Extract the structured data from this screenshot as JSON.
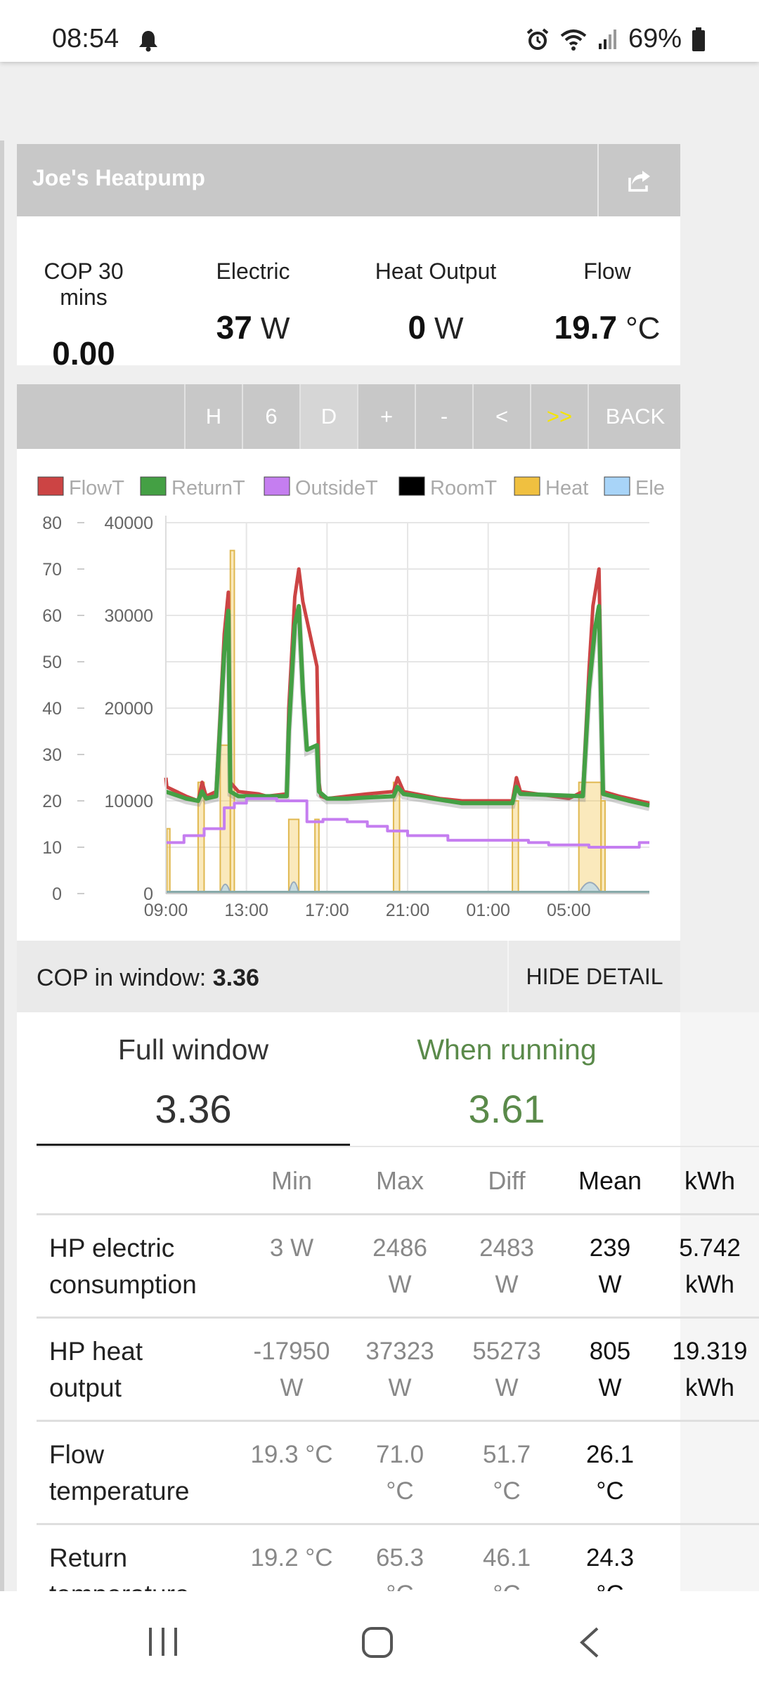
{
  "status_bar": {
    "time": "08:54",
    "battery": "69%"
  },
  "app": {
    "title": "Joe's Heatpump",
    "stats": [
      {
        "label": "COP 30 mins",
        "value": "0.00",
        "unit": ""
      },
      {
        "label": "Electric",
        "value": "37",
        "unit": "W"
      },
      {
        "label": "Heat Output",
        "value": "0",
        "unit": "W"
      },
      {
        "label": "Flow",
        "value": "19.7",
        "unit": "°C"
      }
    ],
    "toolbar": [
      "H",
      "6",
      "D",
      "+",
      "-",
      "<",
      ">>",
      "BACK"
    ],
    "colors": {
      "flow": "#cc4444",
      "return": "#44a044",
      "outside": "#c57ef0",
      "room": "#000000",
      "heat": "#f0c040",
      "elec": "#a8d4f8",
      "highlight": "#f5e500"
    }
  },
  "chart_data": {
    "type": "line",
    "legend": [
      "FlowT",
      "ReturnT",
      "OutsideT",
      "RoomT",
      "Heat",
      "Ele"
    ],
    "y_left_ticks": [
      "80",
      "70",
      "60",
      "50",
      "40",
      "30",
      "20",
      "10",
      "0"
    ],
    "y_right_ticks": [
      "40000",
      "30000",
      "20000",
      "10000",
      "0"
    ],
    "x_ticks": [
      "09:00",
      "13:00",
      "17:00",
      "21:00",
      "01:00",
      "05:00"
    ],
    "y_left_range": [
      0,
      80
    ],
    "y_right_range": [
      0,
      40000
    ],
    "x_range_hours": [
      0,
      24
    ],
    "series": [
      {
        "name": "FlowT",
        "color": "#cc4444",
        "points": [
          [
            0,
            25
          ],
          [
            0.05,
            23
          ],
          [
            1,
            21
          ],
          [
            1.6,
            20
          ],
          [
            1.8,
            24
          ],
          [
            2,
            21
          ],
          [
            2.5,
            22
          ],
          [
            2.9,
            56
          ],
          [
            3.1,
            65
          ],
          [
            3.2,
            24
          ],
          [
            3.6,
            22
          ],
          [
            4.6,
            21.5
          ],
          [
            5,
            21
          ],
          [
            6,
            21.5
          ],
          [
            6.1,
            40
          ],
          [
            6.4,
            64
          ],
          [
            6.6,
            70
          ],
          [
            6.8,
            63
          ],
          [
            7.5,
            49
          ],
          [
            7.6,
            24
          ],
          [
            7.7,
            21
          ],
          [
            8,
            20.5
          ],
          [
            9,
            21
          ],
          [
            10,
            21.5
          ],
          [
            11.3,
            22
          ],
          [
            11.5,
            25
          ],
          [
            11.8,
            22
          ],
          [
            13.6,
            20.5
          ],
          [
            14.7,
            20
          ],
          [
            17.2,
            20
          ],
          [
            17.4,
            25
          ],
          [
            17.6,
            22
          ],
          [
            20,
            20.5
          ],
          [
            20.7,
            22
          ],
          [
            21,
            48
          ],
          [
            21.2,
            62
          ],
          [
            21.5,
            70
          ],
          [
            21.7,
            22
          ],
          [
            22.5,
            21
          ],
          [
            23.5,
            20
          ],
          [
            24,
            19.5
          ]
        ]
      },
      {
        "name": "ReturnT",
        "color": "#44a044",
        "points": [
          [
            0,
            22
          ],
          [
            1,
            20.5
          ],
          [
            1.6,
            20
          ],
          [
            1.8,
            22
          ],
          [
            2,
            20.5
          ],
          [
            2.5,
            21
          ],
          [
            2.9,
            52
          ],
          [
            3.1,
            61
          ],
          [
            3.2,
            22
          ],
          [
            3.6,
            21
          ],
          [
            6,
            21
          ],
          [
            6.1,
            35
          ],
          [
            6.4,
            58
          ],
          [
            6.6,
            62
          ],
          [
            6.8,
            44
          ],
          [
            7,
            31
          ],
          [
            7.5,
            32
          ],
          [
            7.6,
            22
          ],
          [
            8,
            20.5
          ],
          [
            9,
            20.5
          ],
          [
            11.3,
            21
          ],
          [
            11.5,
            23
          ],
          [
            11.8,
            21.5
          ],
          [
            14.7,
            19.5
          ],
          [
            17.2,
            19.5
          ],
          [
            17.4,
            23
          ],
          [
            17.6,
            21.5
          ],
          [
            20.7,
            21
          ],
          [
            21,
            44
          ],
          [
            21.3,
            57
          ],
          [
            21.5,
            62
          ],
          [
            21.7,
            21.5
          ],
          [
            23,
            20
          ],
          [
            24,
            19
          ]
        ]
      },
      {
        "name": "OutsideT",
        "color": "#c57ef0",
        "points": [
          [
            0,
            11
          ],
          [
            0.9,
            11
          ],
          [
            0.9,
            12.5
          ],
          [
            1.9,
            12.5
          ],
          [
            1.9,
            14
          ],
          [
            2.9,
            14
          ],
          [
            2.9,
            18.5
          ],
          [
            3.4,
            18.5
          ],
          [
            3.4,
            19.5
          ],
          [
            4,
            19.5
          ],
          [
            4,
            20.5
          ],
          [
            5.5,
            20.5
          ],
          [
            5.5,
            20
          ],
          [
            7,
            20
          ],
          [
            7,
            15.5
          ],
          [
            7.8,
            15.5
          ],
          [
            7.8,
            16
          ],
          [
            9,
            16
          ],
          [
            9,
            15.5
          ],
          [
            10,
            15.5
          ],
          [
            10,
            14.5
          ],
          [
            11,
            14.5
          ],
          [
            11,
            13.5
          ],
          [
            12,
            13.5
          ],
          [
            12,
            12.5
          ],
          [
            14,
            12.5
          ],
          [
            14,
            11.5
          ],
          [
            18,
            11.5
          ],
          [
            18,
            11
          ],
          [
            19,
            11
          ],
          [
            19,
            10.5
          ],
          [
            21,
            10.5
          ],
          [
            21,
            10
          ],
          [
            23.5,
            10
          ],
          [
            23.5,
            11
          ],
          [
            24,
            11
          ]
        ]
      }
    ],
    "heat_segments": [
      [
        0.05,
        0.2,
        7000
      ],
      [
        1.6,
        1.9,
        12000
      ],
      [
        2.7,
        3.2,
        16000
      ],
      [
        3.2,
        3.4,
        37000
      ],
      [
        6.1,
        6.6,
        8000
      ],
      [
        7.4,
        7.6,
        8000
      ],
      [
        11.3,
        11.6,
        12000
      ],
      [
        17.2,
        17.5,
        10000
      ],
      [
        20.5,
        21.6,
        12000
      ],
      [
        21.6,
        21.8,
        10000
      ]
    ],
    "elec_segments": [
      [
        2.7,
        3.2,
        2000
      ],
      [
        6.1,
        6.6,
        2500
      ],
      [
        20.5,
        21.6,
        2400
      ]
    ]
  },
  "cop_bar": {
    "label": "COP in window:",
    "value": "3.36",
    "hide_label": "HIDE DETAIL"
  },
  "detail": {
    "tabs": [
      {
        "label": "Full window",
        "value": "3.36"
      },
      {
        "label": "When running",
        "value": "3.61"
      }
    ],
    "headers": {
      "min": "Min",
      "max": "Max",
      "diff": "Diff",
      "mean": "Mean",
      "kwh": "kWh"
    },
    "rows": [
      {
        "name1": "HP electric",
        "name2": "consumption",
        "min1": "3 W",
        "min2": "",
        "max1": "2486",
        "max2": "W",
        "diff1": "2483",
        "diff2": "W",
        "mean1": "239",
        "mean2": "W",
        "kwh1": "5.742",
        "kwh2": "kWh"
      },
      {
        "name1": "HP heat",
        "name2": "output",
        "min1": "-17950",
        "min2": "W",
        "max1": "37323",
        "max2": "W",
        "diff1": "55273",
        "diff2": "W",
        "mean1": "805",
        "mean2": "W",
        "kwh1": "19.319",
        "kwh2": "kWh"
      },
      {
        "name1": "Flow",
        "name2": "temperature",
        "min1": "19.3 °C",
        "min2": "",
        "max1": "71.0",
        "max2": "°C",
        "diff1": "51.7",
        "diff2": "°C",
        "mean1": "26.1",
        "mean2": "°C",
        "kwh1": "",
        "kwh2": ""
      },
      {
        "name1": "Return",
        "name2": "temperature",
        "min1": "19.2 °C",
        "min2": "",
        "max1": "65.3",
        "max2": "°C",
        "diff1": "46.1",
        "diff2": "°C",
        "mean1": "24.3",
        "mean2": "°C",
        "kwh1": "",
        "kwh2": ""
      }
    ]
  }
}
